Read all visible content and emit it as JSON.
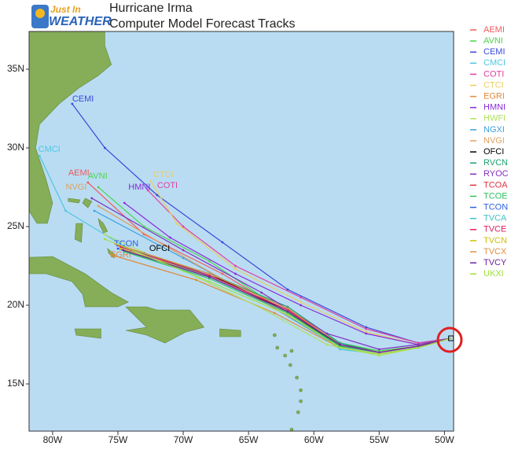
{
  "logo": {
    "line1": "Just In",
    "line2": "WEATHER"
  },
  "title": "Hurricane Irma",
  "subtitle": "Computer Model Forecast Tracks",
  "map": {
    "lon_range": [
      -81.8,
      -49.3
    ],
    "lat_range": [
      12,
      37.4
    ],
    "lon_ticks": [
      {
        "value": -80,
        "label": "80W"
      },
      {
        "value": -75,
        "label": "75W"
      },
      {
        "value": -70,
        "label": "70W"
      },
      {
        "value": -65,
        "label": "65W"
      },
      {
        "value": -60,
        "label": "60W"
      },
      {
        "value": -55,
        "label": "55W"
      },
      {
        "value": -50,
        "label": "50W"
      }
    ],
    "lat_ticks": [
      {
        "value": 15,
        "label": "15N"
      },
      {
        "value": 20,
        "label": "20N"
      },
      {
        "value": 25,
        "label": "25N"
      },
      {
        "value": 30,
        "label": "30N"
      },
      {
        "value": 35,
        "label": "35N"
      }
    ]
  },
  "models": [
    {
      "name": "AEMI",
      "color": "#ef5a5a",
      "lons": [
        -49.5,
        -52,
        -55,
        -58,
        -62,
        -67,
        -73,
        -77.3
      ],
      "lats": [
        17.9,
        17.4,
        17.0,
        17.5,
        19.5,
        22,
        24.5,
        27.8
      ],
      "label_lon": -78.8,
      "label_lat": 28.4
    },
    {
      "name": "AVNI",
      "color": "#4cd44c",
      "lons": [
        -49.5,
        -52,
        -55,
        -58,
        -63,
        -68,
        -73,
        -76.5
      ],
      "lats": [
        17.9,
        17.4,
        17.1,
        17.6,
        20,
        22.8,
        25,
        27.5
      ],
      "label_lon": -77.3,
      "label_lat": 28.2
    },
    {
      "name": "CEMI",
      "color": "#3a4ad8",
      "lons": [
        -49.5,
        -52,
        -56,
        -62,
        -67,
        -72,
        -76,
        -78.5
      ],
      "lats": [
        17.9,
        17.6,
        18.6,
        21,
        24,
        27,
        30,
        32.8
      ],
      "label_lon": -78.5,
      "label_lat": 33.1
    },
    {
      "name": "CMCI",
      "color": "#4fc6e0",
      "lons": [
        -49.5,
        -52,
        -55,
        -58,
        -62,
        -68,
        -74,
        -79,
        -81
      ],
      "lats": [
        17.9,
        17.3,
        16.9,
        17.2,
        19.8,
        22,
        23.5,
        26,
        29.5
      ],
      "label_lon": -81.1,
      "label_lat": 29.9
    },
    {
      "name": "COTI",
      "color": "#e040a0",
      "lons": [
        -49.5,
        -52,
        -56,
        -61,
        -66,
        -70,
        -72.7
      ],
      "lats": [
        17.9,
        17.6,
        18.5,
        20.5,
        22.5,
        25,
        27.3
      ],
      "label_lon": -72,
      "label_lat": 27.6
    },
    {
      "name": "CTCI",
      "color": "#e8d060",
      "lons": [
        -49.5,
        -52,
        -56,
        -61,
        -66,
        -70.5,
        -72.5
      ],
      "lats": [
        17.9,
        17.5,
        18.3,
        20.2,
        22.3,
        25.2,
        27.9
      ],
      "label_lon": -72.3,
      "label_lat": 28.3
    },
    {
      "name": "EGRI",
      "color": "#e08a3a",
      "lons": [
        -49.5,
        -52,
        -55,
        -58,
        -63,
        -69,
        -75.5
      ],
      "lats": [
        17.9,
        17.3,
        16.9,
        17.3,
        19.5,
        21.6,
        23.2
      ],
      "label_lon": -75.6,
      "label_lat": 23.2
    },
    {
      "name": "HMNI",
      "color": "#8a2bd8",
      "lons": [
        -49.5,
        -52,
        -56,
        -61,
        -66,
        -71,
        -74.5
      ],
      "lats": [
        17.9,
        17.5,
        18.2,
        20,
        22,
        24.3,
        26.5
      ],
      "label_lon": -74.2,
      "label_lat": 27.5
    },
    {
      "name": "HWFI",
      "color": "#b0e060",
      "lons": [
        -49.5,
        -52,
        -55,
        -59,
        -64,
        -70,
        -76
      ],
      "lats": [
        17.9,
        17.3,
        16.8,
        17.5,
        19.8,
        22.2,
        24.5
      ]
    },
    {
      "name": "NGXI",
      "color": "#40a0e0",
      "lons": [
        -49.5,
        -52,
        -55,
        -59,
        -64,
        -70,
        -76.8
      ],
      "lats": [
        17.9,
        17.4,
        17.0,
        17.8,
        20.3,
        23,
        26
      ]
    },
    {
      "name": "NVGI",
      "color": "#e0a060",
      "lons": [
        -49.5,
        -52,
        -55,
        -58,
        -63,
        -69,
        -76.5
      ],
      "lats": [
        17.9,
        17.4,
        17.0,
        17.5,
        19.8,
        22.6,
        26.3
      ],
      "label_lon": -79,
      "label_lat": 27.5
    },
    {
      "name": "OFCI",
      "color": "#000000",
      "lons": [
        -49.5,
        -52,
        -55,
        -58,
        -62,
        -67,
        -73
      ],
      "lats": [
        17.9,
        17.4,
        17.0,
        17.4,
        19.6,
        21.6,
        23.3
      ],
      "label_lon": -72.6,
      "label_lat": 23.6
    },
    {
      "name": "RVCN",
      "color": "#20a070",
      "lons": [
        -49.5,
        -52,
        -55,
        -58,
        -62,
        -68,
        -74
      ],
      "lats": [
        17.9,
        17.4,
        17.0,
        17.6,
        19.9,
        22,
        23.5
      ]
    },
    {
      "name": "RYOC",
      "color": "#8030c0",
      "lons": [
        -49.5,
        -52,
        -55,
        -59,
        -64,
        -70,
        -77
      ],
      "lats": [
        17.9,
        17.5,
        17.2,
        18.2,
        20.8,
        23.5,
        26.8
      ]
    },
    {
      "name": "TCOA",
      "color": "#e03040",
      "lons": [
        -49.5,
        -52,
        -55,
        -58,
        -62,
        -68,
        -75
      ],
      "lats": [
        17.9,
        17.4,
        17.0,
        17.5,
        19.7,
        21.9,
        23.8
      ]
    },
    {
      "name": "TCOE",
      "color": "#30c060",
      "lons": [
        -49.5,
        -52,
        -55,
        -58,
        -62,
        -68,
        -74.5
      ],
      "lats": [
        17.9,
        17.4,
        17.0,
        17.4,
        19.5,
        21.7,
        23.4
      ]
    },
    {
      "name": "TCON",
      "color": "#3060e0",
      "lons": [
        -49.5,
        -52,
        -55,
        -58,
        -62,
        -68,
        -75
      ],
      "lats": [
        17.9,
        17.4,
        17.0,
        17.5,
        19.6,
        21.8,
        23.6
      ],
      "label_lon": -75.3,
      "label_lat": 23.9
    },
    {
      "name": "TVCA",
      "color": "#40c0c0",
      "lons": [
        -49.5,
        -52,
        -55,
        -58,
        -62,
        -68,
        -74.5
      ],
      "lats": [
        17.9,
        17.4,
        17.0,
        17.5,
        19.6,
        21.8,
        23.7
      ]
    },
    {
      "name": "TVCE",
      "color": "#e02060",
      "lons": [
        -49.5,
        -52,
        -55,
        -58,
        -62,
        -68,
        -74.8
      ],
      "lats": [
        17.9,
        17.4,
        17.0,
        17.5,
        19.7,
        21.9,
        23.7
      ]
    },
    {
      "name": "TVCN",
      "color": "#d0c000",
      "lons": [
        -49.5,
        -52,
        -55,
        -58,
        -62,
        -68,
        -74.8
      ],
      "lats": [
        17.9,
        17.4,
        17.0,
        17.5,
        19.6,
        21.8,
        23.6
      ]
    },
    {
      "name": "TVCX",
      "color": "#e09040",
      "lons": [
        -49.5,
        -52,
        -55,
        -58,
        -62,
        -68,
        -75.2
      ],
      "lats": [
        17.9,
        17.4,
        17.0,
        17.5,
        19.8,
        22,
        23.9
      ]
    },
    {
      "name": "TVCY",
      "color": "#7020a0",
      "lons": [
        -49.5,
        -52,
        -55,
        -58,
        -62,
        -68,
        -74.6
      ],
      "lats": [
        17.9,
        17.4,
        17.0,
        17.5,
        19.6,
        21.8,
        23.5
      ]
    },
    {
      "name": "UKXI",
      "color": "#a0e040",
      "lons": [
        -49.5,
        -52,
        -55,
        -58,
        -62,
        -68,
        -76
      ],
      "lats": [
        17.9,
        17.3,
        16.9,
        17.3,
        19.4,
        21.5,
        24.2
      ]
    }
  ]
}
